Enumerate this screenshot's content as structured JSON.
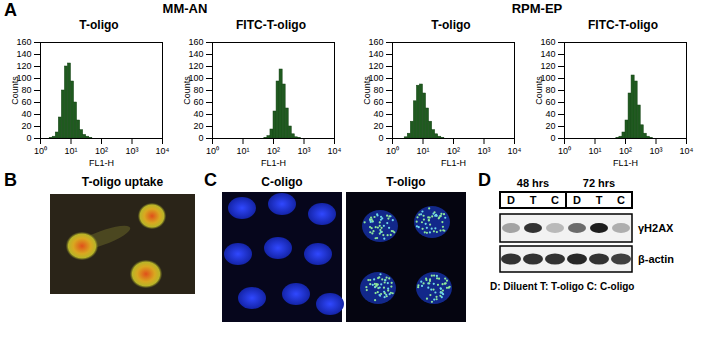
{
  "panel_labels": [
    "A",
    "B",
    "C",
    "D"
  ],
  "chart_data": [
    {
      "type": "histogram",
      "group": "MM-AN",
      "title": "T-oligo",
      "xlabel": "FL1-H",
      "ylabel": "Counts",
      "log": "x",
      "color": "#1f5a1f",
      "bins": [
        1,
        1.26,
        1.58,
        2,
        2.51,
        3.16,
        3.98,
        5.01,
        6.31,
        7.94,
        10,
        12.6,
        15.8,
        20,
        25.1,
        31.6,
        39.8,
        50.1,
        63.1,
        79.4,
        100,
        126,
        158,
        200,
        251,
        316,
        398,
        501,
        631,
        794,
        1000,
        1259,
        1585,
        1995,
        2512,
        3162,
        3981,
        5012,
        6310,
        7943,
        10000
      ],
      "values": [
        0,
        0,
        0,
        1,
        3,
        10,
        35,
        80,
        120,
        125,
        95,
        60,
        30,
        14,
        6,
        3,
        1,
        0,
        0,
        0,
        0,
        0,
        0,
        0,
        0,
        0,
        0,
        0,
        0,
        0,
        0,
        0,
        0,
        0,
        0,
        0,
        0,
        0,
        0,
        0
      ],
      "xlim": [
        1,
        10000
      ],
      "xticks": [
        {
          "value": 1,
          "label": "10⁰"
        },
        {
          "value": 10,
          "label": "10¹"
        },
        {
          "value": 100,
          "label": "10²"
        },
        {
          "value": 1000,
          "label": "10³"
        },
        {
          "value": 10000,
          "label": "10⁴"
        }
      ],
      "ylim": [
        0,
        160
      ],
      "yticks": [
        0,
        20,
        40,
        60,
        80,
        100,
        120,
        140,
        160
      ]
    },
    {
      "type": "histogram",
      "group": "MM-AN",
      "title": "FITC-T-oligo",
      "xlabel": "FL1-H",
      "ylabel": "Counts",
      "log": "x",
      "color": "#1f5a1f",
      "bins": [
        1,
        1.26,
        1.58,
        2,
        2.51,
        3.16,
        3.98,
        5.01,
        6.31,
        7.94,
        10,
        12.6,
        15.8,
        20,
        25.1,
        31.6,
        39.8,
        50.1,
        63.1,
        79.4,
        100,
        126,
        158,
        200,
        251,
        316,
        398,
        501,
        631,
        794,
        1000,
        1259,
        1585,
        1995,
        2512,
        3162,
        3981,
        5012,
        6310,
        7943,
        10000
      ],
      "values": [
        0,
        0,
        0,
        0,
        0,
        0,
        0,
        0,
        0,
        0,
        0,
        0,
        0,
        0,
        0,
        0,
        0,
        1,
        4,
        15,
        45,
        95,
        115,
        90,
        50,
        20,
        7,
        2,
        1,
        0,
        0,
        0,
        0,
        0,
        0,
        0,
        0,
        0,
        0,
        0
      ],
      "xlim": [
        1,
        10000
      ],
      "xticks": [
        {
          "value": 1,
          "label": "10⁰"
        },
        {
          "value": 10,
          "label": "10¹"
        },
        {
          "value": 100,
          "label": "10²"
        },
        {
          "value": 1000,
          "label": "10³"
        },
        {
          "value": 10000,
          "label": "10⁴"
        }
      ],
      "ylim": [
        0,
        160
      ],
      "yticks": [
        0,
        20,
        40,
        60,
        80,
        100,
        120,
        140,
        160
      ]
    },
    {
      "type": "histogram",
      "group": "RPM-EP",
      "title": "T-oligo",
      "xlabel": "FL1-H",
      "ylabel": "Counts",
      "log": "x",
      "color": "#1f5a1f",
      "bins": [
        1,
        1.26,
        1.58,
        2,
        2.51,
        3.16,
        3.98,
        5.01,
        6.31,
        7.94,
        10,
        12.6,
        15.8,
        20,
        25.1,
        31.6,
        39.8,
        50.1,
        63.1,
        79.4,
        100,
        126,
        158,
        200,
        251,
        316,
        398,
        501,
        631,
        794,
        1000,
        1259,
        1585,
        1995,
        2512,
        3162,
        3981,
        5012,
        6310,
        7943,
        10000
      ],
      "values": [
        0,
        0,
        0,
        0,
        2,
        8,
        28,
        62,
        88,
        90,
        75,
        50,
        28,
        14,
        7,
        3,
        1,
        0,
        0,
        0,
        0,
        0,
        0,
        0,
        0,
        0,
        0,
        0,
        0,
        0,
        0,
        0,
        0,
        0,
        0,
        0,
        0,
        0,
        0,
        0
      ],
      "xlim": [
        1,
        10000
      ],
      "xticks": [
        {
          "value": 1,
          "label": "10⁰"
        },
        {
          "value": 10,
          "label": "10¹"
        },
        {
          "value": 100,
          "label": "10²"
        },
        {
          "value": 1000,
          "label": "10³"
        },
        {
          "value": 10000,
          "label": "10⁴"
        }
      ],
      "ylim": [
        0,
        160
      ],
      "yticks": [
        0,
        20,
        40,
        60,
        80,
        100,
        120,
        140,
        160
      ]
    },
    {
      "type": "histogram",
      "group": "RPM-EP",
      "title": "FITC-T-oligo",
      "xlabel": "FL1-H",
      "ylabel": "Counts",
      "log": "x",
      "color": "#1f5a1f",
      "bins": [
        1,
        1.26,
        1.58,
        2,
        2.51,
        3.16,
        3.98,
        5.01,
        6.31,
        7.94,
        10,
        12.6,
        15.8,
        20,
        25.1,
        31.6,
        39.8,
        50.1,
        63.1,
        79.4,
        100,
        126,
        158,
        200,
        251,
        316,
        398,
        501,
        631,
        794,
        1000,
        1259,
        1585,
        1995,
        2512,
        3162,
        3981,
        5012,
        6310,
        7943,
        10000
      ],
      "values": [
        0,
        0,
        0,
        0,
        0,
        0,
        0,
        0,
        0,
        0,
        0,
        0,
        0,
        0,
        0,
        0,
        0,
        1,
        3,
        10,
        30,
        75,
        105,
        95,
        55,
        22,
        8,
        3,
        1,
        0,
        0,
        0,
        0,
        0,
        0,
        0,
        0,
        0,
        0,
        0
      ],
      "xlim": [
        1,
        10000
      ],
      "xticks": [
        {
          "value": 1,
          "label": "10⁰"
        },
        {
          "value": 10,
          "label": "10¹"
        },
        {
          "value": 100,
          "label": "10²"
        },
        {
          "value": 1000,
          "label": "10³"
        },
        {
          "value": 10000,
          "label": "10⁴"
        }
      ],
      "ylim": [
        0,
        160
      ],
      "yticks": [
        0,
        20,
        40,
        60,
        80,
        100,
        120,
        140,
        160
      ]
    }
  ],
  "uptake_image": {
    "title": "T-oligo uptake"
  },
  "confocal_images": {
    "labels": [
      "C-oligo",
      "T-oligo"
    ]
  },
  "western_blot": {
    "time_groups": [
      {
        "label": "48 hrs",
        "lanes": [
          "D",
          "T",
          "C"
        ]
      },
      {
        "label": "72 hrs",
        "lanes": [
          "D",
          "T",
          "C"
        ]
      }
    ],
    "rows": [
      {
        "label": "γH2AX",
        "intensity": [
          0.35,
          0.85,
          0.25,
          0.6,
          0.95,
          0.3
        ]
      },
      {
        "label": "β-actin",
        "intensity": [
          0.85,
          0.85,
          0.85,
          0.9,
          0.85,
          0.8
        ]
      }
    ],
    "footnote": "D: Diluent T: T-oligo C: C-oligo"
  }
}
